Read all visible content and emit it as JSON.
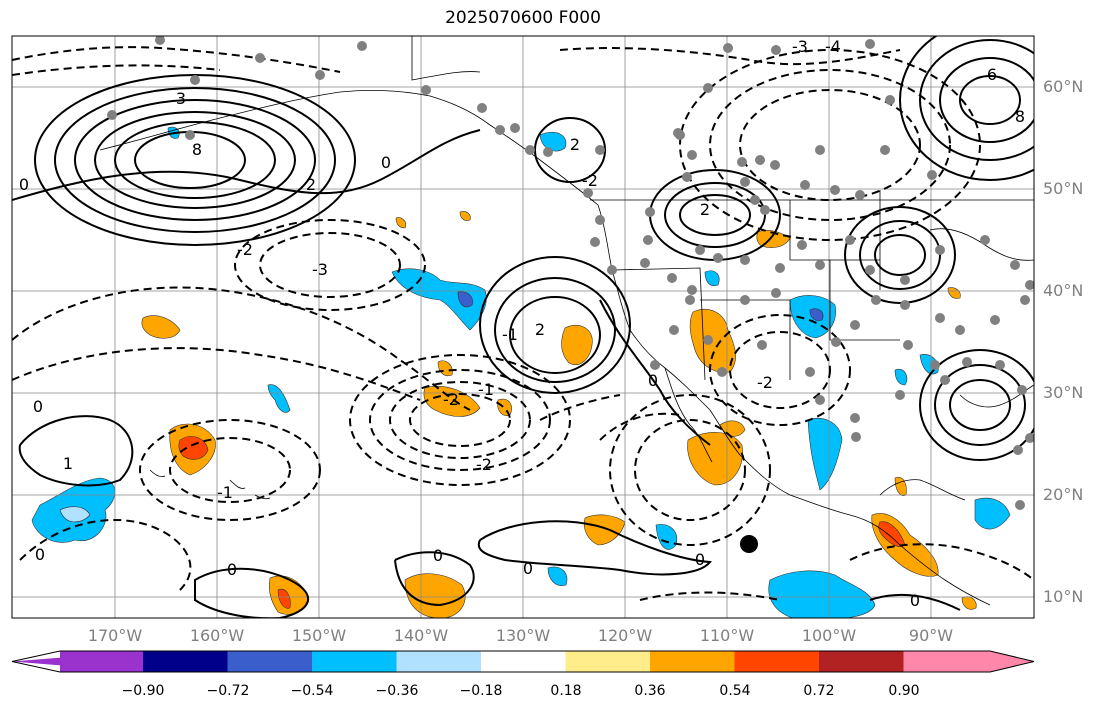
{
  "title": "2025070600 F000",
  "lat_labels": [
    "60°N",
    "50°N",
    "40°N",
    "30°N",
    "20°N",
    "10°N"
  ],
  "lon_labels": [
    "170°W",
    "160°W",
    "150°W",
    "140°W",
    "130°W",
    "120°W",
    "110°W",
    "100°W",
    "90°W"
  ],
  "colorbar": {
    "ticks": [
      "−0.90",
      "−0.72",
      "−0.54",
      "−0.36",
      "−0.18",
      "0.18",
      "0.36",
      "0.54",
      "0.72",
      "0.90"
    ],
    "colors": [
      "#9a32cd",
      "#00008b",
      "#3a5fcd",
      "#00bfff",
      "#b0e2ff",
      "#ffffff",
      "#ffec8b",
      "#ffa500",
      "#ff4500",
      "#b22222",
      "#ff88aa"
    ]
  },
  "contour_labels": [
    {
      "text": "3"
    },
    {
      "text": "8"
    },
    {
      "text": "2"
    },
    {
      "text": "0"
    },
    {
      "text": "-2"
    },
    {
      "text": "-3"
    },
    {
      "text": "2"
    },
    {
      "text": "-2"
    },
    {
      "text": "2"
    },
    {
      "text": "0"
    },
    {
      "text": "-1"
    },
    {
      "text": "-2"
    },
    {
      "text": "0"
    },
    {
      "text": "1"
    },
    {
      "text": "-1"
    },
    {
      "text": "0"
    },
    {
      "text": "0"
    },
    {
      "text": "0"
    },
    {
      "text": "0"
    },
    {
      "text": "-2"
    },
    {
      "text": "-1"
    },
    {
      "text": "2"
    },
    {
      "text": "6"
    },
    {
      "text": "8"
    },
    {
      "text": "-2"
    },
    {
      "text": "-4"
    },
    {
      "text": "0"
    },
    {
      "text": "0"
    },
    {
      "text": "-3"
    },
    {
      "text": "0"
    }
  ]
}
